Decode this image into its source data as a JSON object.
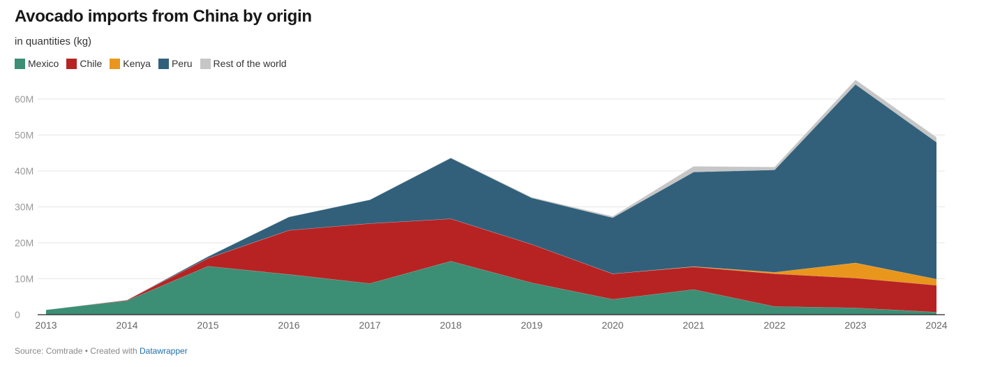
{
  "chart_data": {
    "type": "area",
    "stacked": true,
    "title": "Avocado imports from China by origin",
    "subtitle": "in quantities (kg)",
    "xlabel": "",
    "ylabel": "",
    "x": [
      "2013",
      "2014",
      "2015",
      "2016",
      "2017",
      "2018",
      "2019",
      "2020",
      "2021",
      "2022",
      "2023",
      "2024"
    ],
    "yticks": [
      {
        "value": 0,
        "label": "0"
      },
      {
        "value": 10000000,
        "label": "10M"
      },
      {
        "value": 20000000,
        "label": "20M"
      },
      {
        "value": 30000000,
        "label": "30M"
      },
      {
        "value": 40000000,
        "label": "40M"
      },
      {
        "value": 50000000,
        "label": "50M"
      },
      {
        "value": 60000000,
        "label": "60M"
      }
    ],
    "ylim": [
      0,
      66000000
    ],
    "grid": true,
    "legend_position": "top-left",
    "series": [
      {
        "name": "Mexico",
        "color": "#3c8e75",
        "values": [
          1400000,
          3900000,
          13500000,
          11200000,
          8700000,
          14900000,
          8900000,
          4300000,
          7000000,
          2300000,
          1900000,
          700000
        ]
      },
      {
        "name": "Chile",
        "color": "#b72323",
        "values": [
          0,
          200000,
          2200000,
          12300000,
          16700000,
          11800000,
          10700000,
          7100000,
          6300000,
          9100000,
          8300000,
          7500000
        ]
      },
      {
        "name": "Kenya",
        "color": "#e9961c",
        "values": [
          0,
          0,
          0,
          0,
          0,
          0,
          0,
          0,
          100000,
          400000,
          4200000,
          1700000
        ]
      },
      {
        "name": "Peru",
        "color": "#32607a",
        "values": [
          0,
          0,
          500000,
          3700000,
          6600000,
          16900000,
          12900000,
          15600000,
          26300000,
          28500000,
          49700000,
          38100000
        ]
      },
      {
        "name": "Rest of the world",
        "color": "#c6c6c6",
        "values": [
          0,
          0,
          0,
          0,
          0,
          100000,
          200000,
          400000,
          1600000,
          800000,
          1300000,
          1400000
        ]
      }
    ],
    "source": "Source: Comtrade",
    "credit_prefix": "Created with",
    "credit_link": "Datawrapper"
  }
}
